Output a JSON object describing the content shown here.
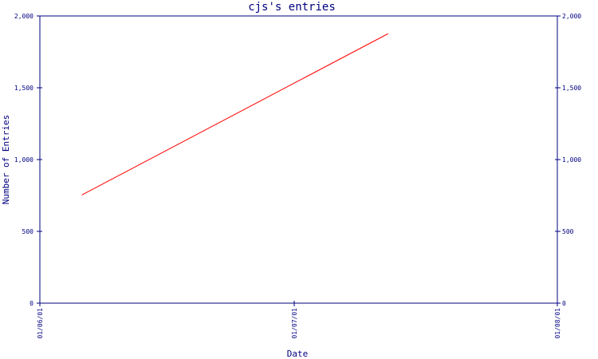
{
  "chart_data": {
    "type": "line",
    "title": "cjs's entries",
    "xlabel": "Date",
    "ylabel": "Number of Entries",
    "x_ticks": [
      "01/06/01",
      "01/07/01",
      "01/08/01"
    ],
    "x_range": [
      "2001-06-01",
      "2001-08-01"
    ],
    "y_ticks": [
      "0",
      "500",
      "1,000",
      "1,500",
      "2,000"
    ],
    "y_tick_values": [
      0,
      500,
      1000,
      1500,
      2000
    ],
    "ylim": [
      0,
      2000
    ],
    "grid": false,
    "legend": "none",
    "series": [
      {
        "color": "#ff0000",
        "points": [
          {
            "x": "2001-06-06",
            "y": 755
          },
          {
            "x": "2001-07-12",
            "y": 1875
          }
        ]
      }
    ]
  },
  "colors": {
    "axis": "#000080",
    "text": "#000080",
    "background": "#ffffff"
  }
}
